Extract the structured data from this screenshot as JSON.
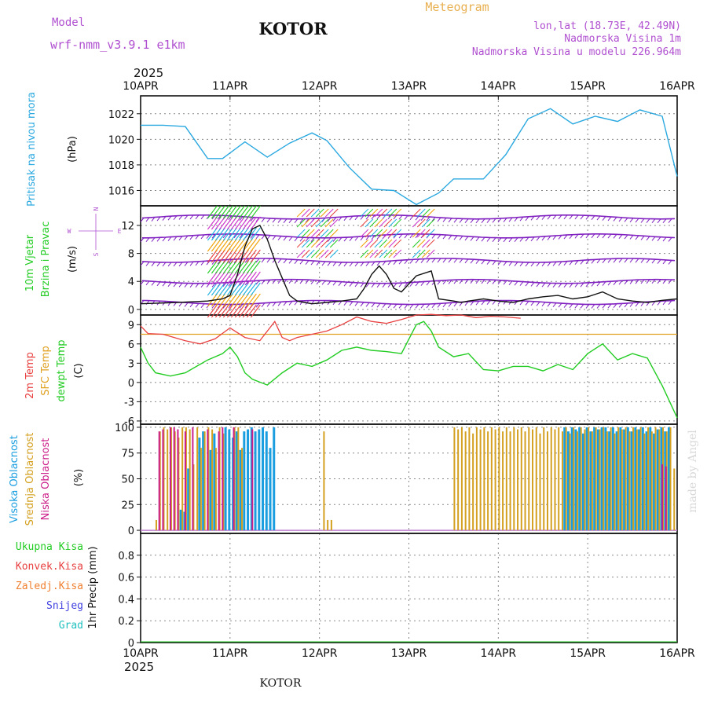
{
  "header": {
    "model_label": "Model",
    "model_name": "wrf-nmm_v3.9.1 e1km",
    "station_title": "KOTOR",
    "product_title": "Meteogram",
    "lonlat": "lon,lat (18.73E, 42.49N)",
    "elevation": "Nadmorska Visina 1m",
    "model_elevation": "Nadmorska Visina u modelu 226.964m",
    "year_top": "2025",
    "year_bottom": "2025",
    "footer_station": "KOTOR",
    "credit": "made by Angel"
  },
  "colors": {
    "pressure": "#2aa8e0",
    "wind_label": "#22cc22",
    "temp_2m": "#e84040",
    "temp_sfc": "#e0a020",
    "temp_dewpt": "#22cc22",
    "cloud_high": "#1a9ee0",
    "cloud_mid": "#d4a020",
    "cloud_low": "#cc1f8a",
    "precip_total": "#22cc22",
    "precip_conv": "#e84040",
    "precip_frz": "#f08030",
    "snow": "#4040e0",
    "hail": "#20c0c0",
    "wind_barb": "#8020c0",
    "title_purple": "#b050d0",
    "meteogram_orange": "#e8b050"
  },
  "panels": {
    "pressure": {
      "ylabel_title": "Pritisak na nivou mora",
      "unit": "(hPa)"
    },
    "wind": {
      "ylabel_title1": "10m Vjetar",
      "ylabel_title2": "Brzina i Pravac",
      "unit": "(m/s)",
      "compass_n": "N",
      "compass_w": "W",
      "compass_e": "E",
      "compass_s": "S"
    },
    "temp": {
      "label_2m": "2m Temp",
      "label_sfc": "SFC Temp",
      "label_dewpt": "dewpt Temp",
      "unit": "(C)"
    },
    "cloud": {
      "label_high": "Visoka Oblacnost",
      "label_mid": "Srednja Oblacnost",
      "label_low": "Niska Oblacnost",
      "unit": "(%)"
    },
    "precip": {
      "label_total": "Ukupna Kisa",
      "label_conv": "Konvek.Kisa",
      "label_frz": "Zaledj.Kisa",
      "label_snow": "Snijeg",
      "label_hail": "Grad",
      "unit": "1hr Precip (mm)"
    }
  },
  "chart_data": [
    {
      "type": "line",
      "id": "pressure",
      "xlabel": "",
      "ylabel": "Pritisak na nivou mora (hPa)",
      "x_ticks": [
        "10APR",
        "11APR",
        "12APR",
        "13APR",
        "14APR",
        "15APR",
        "16APR"
      ],
      "xlim": [
        0,
        144
      ],
      "ylim": [
        1014.8,
        1023.4
      ],
      "y_ticks": [
        1016,
        1018,
        1020,
        1022
      ],
      "grid": true,
      "series": [
        {
          "x": [
            0,
            6,
            12,
            18,
            22,
            28,
            34,
            40,
            46,
            50,
            56,
            62,
            68,
            74,
            80,
            84,
            92,
            98,
            104,
            110,
            116,
            122,
            128,
            134,
            140,
            144
          ],
          "values": [
            1021.1,
            1021.1,
            1021.0,
            1018.5,
            1018.5,
            1019.8,
            1018.6,
            1019.7,
            1020.5,
            1019.9,
            1017.8,
            1016.1,
            1016.0,
            1014.9,
            1015.8,
            1016.9,
            1016.9,
            1018.8,
            1021.6,
            1022.4,
            1021.2,
            1021.8,
            1021.4,
            1022.3,
            1021.8,
            1017.1
          ]
        }
      ]
    },
    {
      "type": "line",
      "id": "wind_speed",
      "ylabel": "10m Vjetar Brzina i Pravac (m/s)",
      "xlim": [
        0,
        144
      ],
      "ylim": [
        -0.8,
        14.8
      ],
      "y_ticks": [
        0,
        4,
        8,
        12
      ],
      "y_tick_labels": [
        "0",
        "4",
        "8",
        "12"
      ],
      "grid": true,
      "series": [
        {
          "x": [
            0,
            10,
            18,
            22,
            24,
            26,
            28,
            30,
            32,
            34,
            36,
            38,
            40,
            42,
            44,
            46,
            50,
            54,
            58,
            60,
            62,
            64,
            66,
            68,
            70,
            74,
            78,
            80,
            84,
            86,
            88,
            92,
            96,
            100,
            104,
            108,
            112,
            116,
            120,
            124,
            128,
            132,
            136,
            140,
            144
          ],
          "values": [
            0.8,
            1.0,
            1.2,
            1.5,
            2.0,
            5.0,
            9.0,
            11.5,
            12.0,
            10.0,
            7.0,
            4.5,
            2.0,
            1.2,
            1.0,
            0.8,
            1.0,
            1.2,
            1.5,
            3.0,
            5.0,
            6.2,
            5.0,
            3.0,
            2.5,
            4.8,
            5.5,
            1.5,
            1.2,
            1.0,
            1.2,
            1.5,
            1.2,
            1.0,
            1.5,
            1.8,
            2.0,
            1.5,
            1.8,
            2.5,
            1.5,
            1.2,
            1.0,
            1.3,
            1.5
          ]
        }
      ]
    },
    {
      "type": "line",
      "id": "temperature",
      "ylabel": "(C)",
      "xlim": [
        0,
        144
      ],
      "ylim": [
        -6.5,
        10.5
      ],
      "y_ticks": [
        -6,
        -3,
        0,
        3,
        6,
        9
      ],
      "grid": true,
      "series": [
        {
          "name": "2m Temp",
          "x": [
            0,
            2,
            6,
            12,
            16,
            20,
            24,
            28,
            32,
            36,
            38,
            40,
            42,
            46,
            50,
            54,
            58,
            62,
            66,
            70,
            74,
            78,
            82,
            86,
            90,
            94,
            98,
            102
          ],
          "values": [
            8.8,
            7.6,
            7.5,
            6.5,
            6.0,
            6.8,
            8.5,
            7.0,
            6.5,
            9.5,
            7.0,
            6.5,
            7.0,
            7.5,
            8.0,
            9.0,
            10.2,
            9.5,
            9.2,
            9.8,
            10.5,
            10.6,
            10.4,
            10.5,
            10.1,
            10.3,
            10.2,
            10.0
          ]
        },
        {
          "name": "SFC Temp",
          "x": [
            0,
            144
          ],
          "values": [
            7.5,
            7.5
          ]
        },
        {
          "name": "dewpt Temp",
          "x": [
            0,
            2,
            4,
            8,
            12,
            18,
            22,
            24,
            26,
            28,
            30,
            34,
            38,
            42,
            46,
            50,
            54,
            58,
            62,
            66,
            70,
            74,
            76,
            78,
            80,
            84,
            88,
            92,
            96,
            100,
            104,
            108,
            112,
            116,
            120,
            124,
            128,
            132,
            136,
            140,
            144
          ],
          "values": [
            5.5,
            3.0,
            1.5,
            1.0,
            1.5,
            3.5,
            4.5,
            5.5,
            4.0,
            1.5,
            0.5,
            -0.4,
            1.5,
            3.0,
            2.5,
            3.5,
            5.0,
            5.5,
            5.0,
            4.8,
            4.5,
            9.0,
            9.5,
            8.0,
            5.5,
            4.0,
            4.5,
            2.0,
            1.8,
            2.5,
            2.5,
            1.8,
            2.8,
            2.0,
            4.5,
            6.0,
            3.5,
            4.5,
            3.8,
            -0.5,
            -5.5
          ]
        }
      ]
    },
    {
      "type": "bar",
      "id": "cloud_cover",
      "ylabel": "(%)",
      "xlim": [
        0,
        144
      ],
      "ylim": [
        -3,
        103
      ],
      "y_ticks": [
        0,
        25,
        50,
        75,
        100
      ],
      "grid": true,
      "series": [
        {
          "name": "Visoka Oblacnost",
          "x": [
            11,
            12,
            13,
            16,
            17,
            19,
            20,
            23,
            24,
            25,
            26,
            27,
            28,
            29,
            30,
            31,
            32,
            33,
            34,
            35,
            36,
            114,
            115,
            116,
            117,
            118,
            119,
            120,
            121,
            122,
            123,
            124,
            125,
            126,
            127,
            128,
            129,
            130,
            131,
            132,
            133,
            134,
            135,
            136,
            137,
            138,
            139,
            140,
            141,
            142
          ],
          "values": [
            20,
            18,
            60,
            90,
            96,
            78,
            94,
            100,
            98,
            90,
            96,
            78,
            96,
            98,
            100,
            96,
            98,
            100,
            96,
            80,
            100,
            100,
            96,
            100,
            98,
            100,
            94,
            100,
            96,
            100,
            98,
            100,
            100,
            96,
            100,
            96,
            100,
            98,
            100,
            96,
            100,
            98,
            100,
            96,
            100,
            94,
            98,
            100,
            96,
            100
          ]
        },
        {
          "name": "Srednja Oblacnost",
          "x": [
            4,
            5,
            6,
            7,
            8,
            9,
            10,
            11,
            12,
            13,
            14,
            15,
            16,
            17,
            18,
            19,
            20,
            21,
            22,
            23,
            24,
            25,
            26,
            27,
            48,
            49,
            50,
            51,
            52,
            53,
            54,
            55,
            56,
            57,
            58,
            59,
            60,
            61,
            62,
            63,
            64,
            65,
            66,
            67,
            68,
            69,
            70,
            71,
            72,
            73,
            74,
            75,
            76,
            77,
            78,
            79,
            80,
            81,
            82,
            83,
            84,
            85,
            86,
            87,
            88,
            89,
            90,
            91,
            92,
            93,
            94,
            95,
            96,
            97,
            98,
            99,
            100,
            101,
            102,
            103,
            104,
            105,
            106,
            107,
            108,
            109,
            110,
            111,
            112,
            113,
            114,
            115,
            116,
            117,
            118,
            119,
            120,
            121,
            122,
            123,
            124,
            125,
            126,
            127,
            128,
            129,
            130,
            131,
            132,
            133,
            134,
            135,
            136,
            137,
            138,
            139,
            140,
            141,
            142,
            143
          ],
          "values": [
            10,
            96,
            100,
            98,
            100,
            96,
            90,
            100,
            100,
            98,
            64,
            100,
            80,
            96,
            100,
            98,
            80,
            100,
            94,
            0,
            0,
            100,
            100,
            80,
            0,
            96,
            10,
            10,
            0,
            0,
            0,
            0,
            0,
            0,
            0,
            0,
            0,
            0,
            0,
            0,
            0,
            0,
            0,
            0,
            0,
            0,
            0,
            0,
            0,
            0,
            0,
            0,
            0,
            0,
            0,
            0,
            0,
            0,
            0,
            0,
            100,
            98,
            100,
            96,
            100,
            94,
            100,
            98,
            100,
            96,
            100,
            98,
            100,
            96,
            100,
            96,
            100,
            98,
            100,
            96,
            100,
            98,
            100,
            94,
            100,
            96,
            100,
            98,
            100,
            96,
            100,
            94,
            100,
            96,
            100,
            98,
            100,
            96,
            100,
            98,
            100,
            96,
            100,
            94,
            100,
            98,
            100,
            96,
            100,
            98,
            100,
            94,
            100,
            96,
            100,
            98,
            100,
            96,
            100,
            60
          ]
        },
        {
          "name": "Niska Oblacnost",
          "x": [
            5,
            6,
            8,
            9,
            10,
            12,
            14,
            18,
            21,
            22,
            25,
            30,
            140,
            141
          ],
          "values": [
            96,
            98,
            100,
            100,
            98,
            96,
            100,
            98,
            96,
            100,
            100,
            98,
            64,
            62
          ]
        }
      ]
    },
    {
      "type": "bar",
      "id": "precipitation",
      "ylabel": "1hr Precip (mm)",
      "xlim": [
        0,
        144
      ],
      "ylim": [
        0,
        1.0
      ],
      "y_ticks": [
        0,
        0.2,
        0.4,
        0.6,
        0.8
      ],
      "y_tick_labels": [
        "0",
        "0.2",
        "0.4",
        "0.6",
        "0.8"
      ],
      "grid": true,
      "series": [
        {
          "name": "Ukupna Kisa",
          "values": []
        },
        {
          "name": "Konvek.Kisa",
          "values": []
        },
        {
          "name": "Zaledj.Kisa",
          "values": []
        },
        {
          "name": "Snijeg",
          "values": []
        },
        {
          "name": "Grad",
          "values": []
        }
      ]
    }
  ]
}
